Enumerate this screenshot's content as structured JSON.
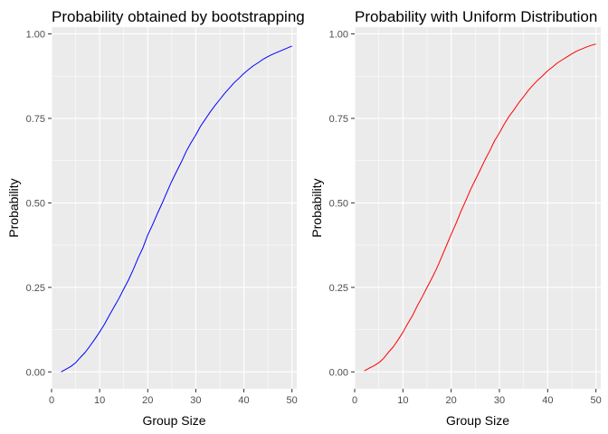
{
  "chart_data": [
    {
      "type": "line",
      "title": "Probability obtained by bootstrapping",
      "xlabel": "Group Size",
      "ylabel": "Probability",
      "xlim": [
        0,
        51
      ],
      "ylim": [
        -0.05,
        1.02
      ],
      "xticks": [
        0,
        10,
        20,
        30,
        40,
        50
      ],
      "xtick_labels": [
        "0",
        "10",
        "20",
        "30",
        "40",
        "50"
      ],
      "yticks": [
        0,
        0.25,
        0.5,
        0.75,
        1
      ],
      "ytick_labels": [
        "0.00",
        "0.25",
        "0.50",
        "0.75",
        "1.00"
      ],
      "grid": true,
      "series": [
        {
          "color": "#0000ff",
          "x": [
            2,
            3,
            4,
            5,
            6,
            7,
            8,
            9,
            10,
            11,
            12,
            13,
            14,
            15,
            16,
            17,
            18,
            19,
            20,
            21,
            22,
            23,
            24,
            25,
            26,
            27,
            28,
            29,
            30,
            31,
            32,
            33,
            34,
            35,
            36,
            37,
            38,
            39,
            40,
            41,
            42,
            43,
            44,
            45,
            46,
            47,
            48,
            49,
            50
          ],
          "y": [
            0.0,
            0.008,
            0.016,
            0.027,
            0.043,
            0.058,
            0.077,
            0.097,
            0.118,
            0.141,
            0.167,
            0.192,
            0.217,
            0.245,
            0.272,
            0.303,
            0.337,
            0.367,
            0.405,
            0.435,
            0.468,
            0.499,
            0.532,
            0.564,
            0.593,
            0.621,
            0.652,
            0.678,
            0.701,
            0.727,
            0.748,
            0.769,
            0.788,
            0.806,
            0.824,
            0.84,
            0.856,
            0.869,
            0.883,
            0.895,
            0.906,
            0.915,
            0.925,
            0.933,
            0.94,
            0.946,
            0.952,
            0.958,
            0.964
          ]
        }
      ]
    },
    {
      "type": "line",
      "title": "Probability with Uniform Distribution",
      "xlabel": "Group Size",
      "ylabel": "Probability",
      "xlim": [
        0,
        51
      ],
      "ylim": [
        -0.05,
        1.02
      ],
      "xticks": [
        0,
        10,
        20,
        30,
        40,
        50
      ],
      "xtick_labels": [
        "0",
        "10",
        "20",
        "30",
        "40",
        "50"
      ],
      "yticks": [
        0,
        0.25,
        0.5,
        0.75,
        1
      ],
      "ytick_labels": [
        "0.00",
        "0.25",
        "0.50",
        "0.75",
        "1.00"
      ],
      "grid": true,
      "series": [
        {
          "color": "#ff0000",
          "x": [
            2,
            3,
            4,
            5,
            6,
            7,
            8,
            9,
            10,
            11,
            12,
            13,
            14,
            15,
            16,
            17,
            18,
            19,
            20,
            21,
            22,
            23,
            24,
            25,
            26,
            27,
            28,
            29,
            30,
            31,
            32,
            33,
            34,
            35,
            36,
            37,
            38,
            39,
            40,
            41,
            42,
            43,
            44,
            45,
            46,
            47,
            48,
            49,
            50
          ],
          "y": [
            0.003,
            0.011,
            0.018,
            0.027,
            0.04,
            0.058,
            0.074,
            0.095,
            0.117,
            0.143,
            0.167,
            0.196,
            0.222,
            0.25,
            0.277,
            0.306,
            0.339,
            0.373,
            0.407,
            0.439,
            0.474,
            0.506,
            0.539,
            0.568,
            0.597,
            0.627,
            0.654,
            0.684,
            0.707,
            0.733,
            0.756,
            0.775,
            0.796,
            0.814,
            0.833,
            0.849,
            0.864,
            0.877,
            0.891,
            0.902,
            0.914,
            0.923,
            0.932,
            0.941,
            0.949,
            0.955,
            0.961,
            0.966,
            0.97
          ]
        }
      ]
    }
  ]
}
